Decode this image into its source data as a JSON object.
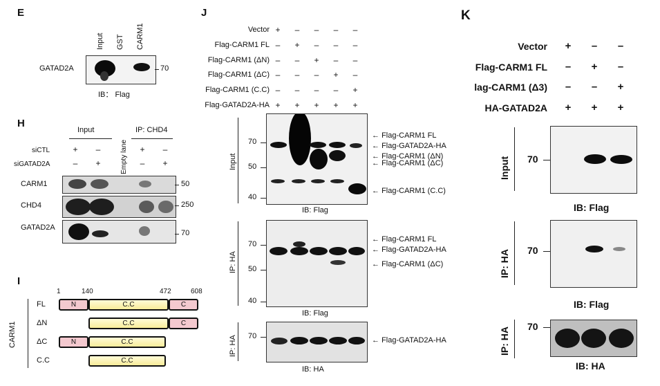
{
  "panelE": {
    "letter": "E",
    "lanes": [
      "Input",
      "GST",
      "CARM1"
    ],
    "row_label": "GATAD2A",
    "marker": "70",
    "ib_label": "IB： Flag"
  },
  "panelH": {
    "letter": "H",
    "input_header": "Input",
    "empty_lane": "Empty lane",
    "ip_header": "IP: CHD4",
    "row_siCTL": "siCTL",
    "row_siGATAD2A": "siGATAD2A",
    "siCTL_signs": [
      "+",
      "–",
      "+",
      "–"
    ],
    "siGATAD2A_signs": [
      "–",
      "+",
      "–",
      "+"
    ],
    "blots": [
      {
        "label": "CARM1",
        "marker": "50"
      },
      {
        "label": "CHD4",
        "marker": "250"
      },
      {
        "label": "GATAD2A",
        "marker": "70"
      }
    ]
  },
  "panelI": {
    "letter": "I",
    "positions": [
      "1",
      "140",
      "472",
      "608"
    ],
    "group_label": "CARM1",
    "rows": [
      {
        "label": "FL",
        "domains": [
          "N",
          "C.C",
          "C"
        ]
      },
      {
        "label": "ΔN",
        "domains": [
          "C.C",
          "C"
        ]
      },
      {
        "label": "ΔC",
        "domains": [
          "N",
          "C.C"
        ]
      },
      {
        "label": "C.C",
        "domains": [
          "C.C"
        ]
      }
    ]
  },
  "panelJ": {
    "letter": "J",
    "conditions": [
      {
        "label": "Vector",
        "signs": [
          "+",
          "–",
          "–",
          "–",
          "–"
        ]
      },
      {
        "label": "Flag-CARM1 FL",
        "signs": [
          "–",
          "+",
          "–",
          "–",
          "–"
        ]
      },
      {
        "label": "Flag-CARM1 (ΔN)",
        "signs": [
          "–",
          "–",
          "+",
          "–",
          "–"
        ]
      },
      {
        "label": "Flag-CARM1 (ΔC)",
        "signs": [
          "–",
          "–",
          "–",
          "+",
          "–"
        ]
      },
      {
        "label": "Flag-CARM1 (C.C)",
        "signs": [
          "–",
          "–",
          "–",
          "–",
          "+"
        ]
      },
      {
        "label": "Flag-GATAD2A-HA",
        "signs": [
          "+",
          "+",
          "+",
          "+",
          "+"
        ]
      }
    ],
    "input_side": "Input",
    "input_markers": [
      "70",
      "50",
      "40"
    ],
    "input_arrows": [
      "Flag-CARM1 FL",
      "Flag-GATAD2A-HA",
      "Flag-CARM1 (ΔN)",
      "Flag-CARM1 (ΔC)",
      "Flag-CARM1 (C.C)"
    ],
    "input_ib": "IB: Flag",
    "ip_side": "IP: HA",
    "ip_markers": [
      "70",
      "50",
      "40"
    ],
    "ip_arrows": [
      "Flag-CARM1 FL",
      "Flag-GATAD2A-HA",
      "Flag-CARM1 (ΔC)"
    ],
    "ip_ib": "IB: Flag",
    "ha_side": "IP: HA",
    "ha_marker": "70",
    "ha_arrow": "Flag-GATAD2A-HA",
    "ha_ib": "IB: HA"
  },
  "panelK": {
    "letter": "K",
    "conditions": [
      {
        "label": "Vector",
        "signs": [
          "+",
          "–",
          "–"
        ]
      },
      {
        "label": "Flag-CARM1 FL",
        "signs": [
          "–",
          "+",
          "–"
        ]
      },
      {
        "label": "lag-CARM1 (Δ3)",
        "signs": [
          "–",
          "–",
          "+"
        ]
      },
      {
        "label": "HA-GATAD2A",
        "signs": [
          "+",
          "+",
          "+"
        ]
      }
    ],
    "blots": [
      {
        "side": "Input",
        "marker": "70",
        "ib": "IB: Flag"
      },
      {
        "side": "IP: HA",
        "marker": "70",
        "ib": "IB: Flag"
      },
      {
        "side": "IP: HA",
        "marker": "70",
        "ib": "IB: HA"
      }
    ]
  }
}
